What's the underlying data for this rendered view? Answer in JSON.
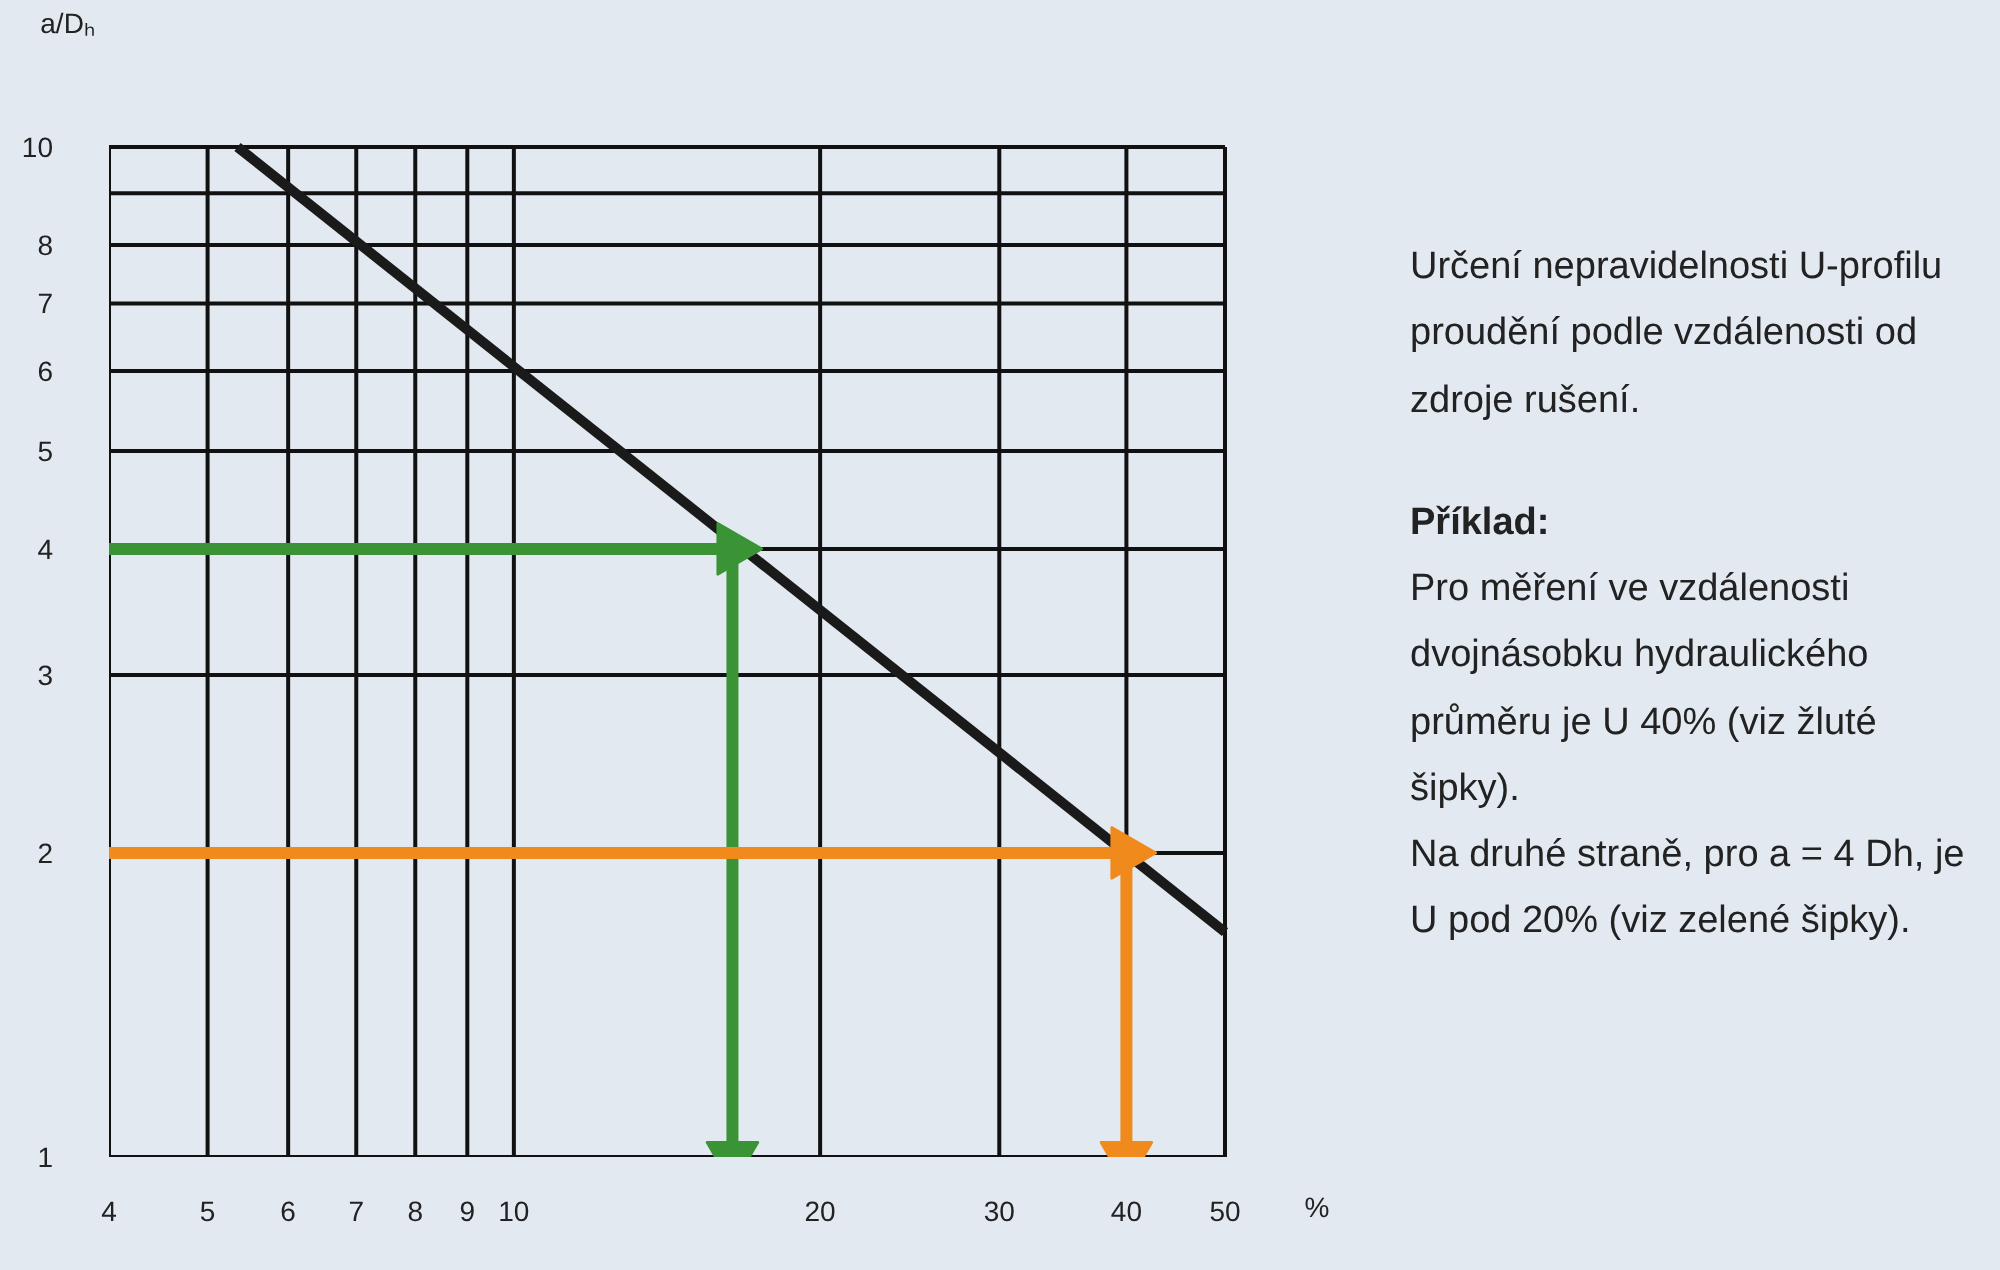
{
  "chart_data": {
    "type": "line",
    "log": "xy",
    "grid": true,
    "title": "Určení nepravidelnosti U-profilu proudění podle vzdálenosti od zdroje rušení.",
    "xlabel": "%",
    "ylabel": "a/Dₕ",
    "xlim": [
      4,
      50
    ],
    "ylim": [
      1,
      10
    ],
    "xticks": [
      4,
      5,
      6,
      7,
      8,
      9,
      10,
      20,
      30,
      40,
      50
    ],
    "yticks": [
      1,
      2,
      3,
      4,
      5,
      6,
      7,
      8,
      {
        "value": 9,
        "label": null
      },
      10
    ],
    "series": [
      {
        "color": "#1a1a1a",
        "x": [
          5.35,
          50
        ],
        "values": [
          10,
          1.67
        ]
      },
      {
        "color": "#3a9435",
        "x": [
          4,
          16.4,
          16.4
        ],
        "values": [
          4,
          4,
          1
        ],
        "marker": "triangle"
      },
      {
        "color": "#f08a1c",
        "x": [
          4,
          40,
          40
        ],
        "values": [
          2,
          2,
          1
        ],
        "marker": "triangle"
      }
    ],
    "annotations": [
      "Příklad:",
      "Pro měření ve vzdálenosti dvojnásobku hydraulického průměru je U 40% (viz žluté šipky).",
      "Na druhé straně, pro a = 4 Dh, je U pod 20% (viz zelené šipky)."
    ]
  }
}
